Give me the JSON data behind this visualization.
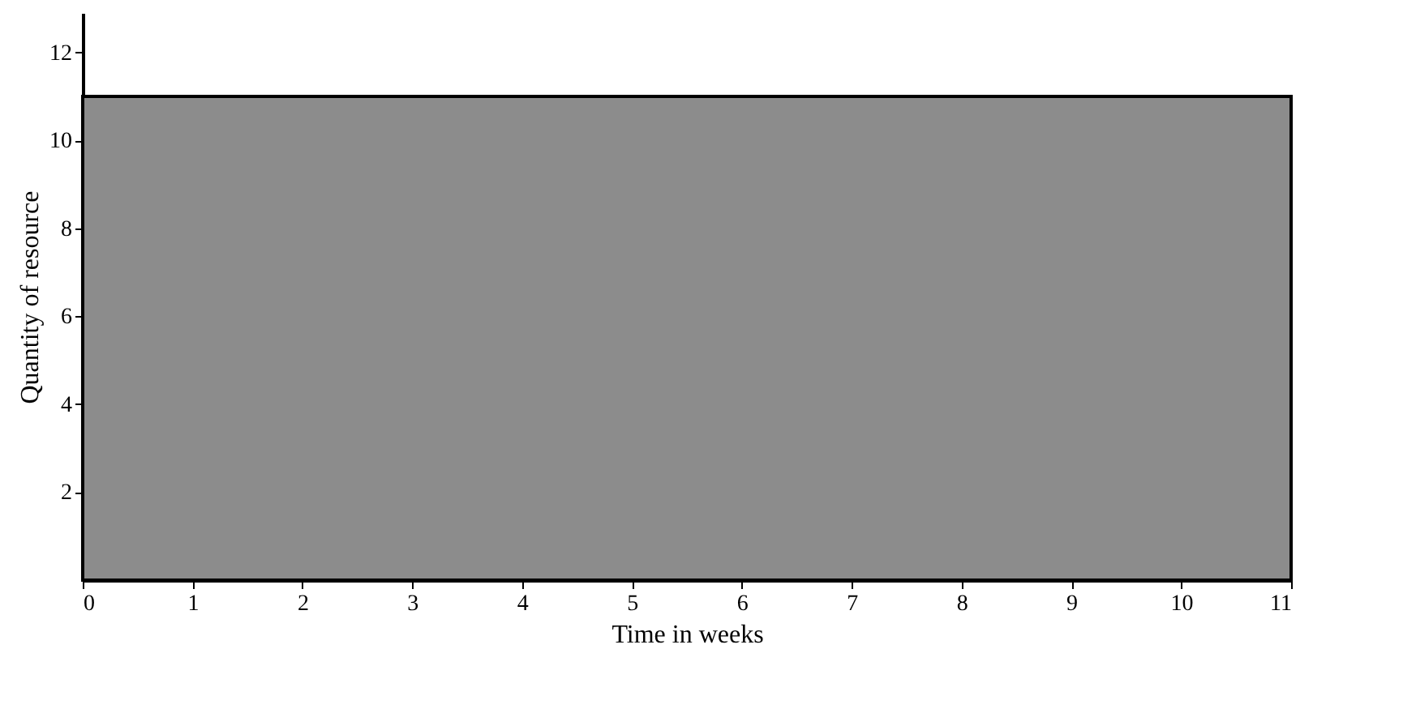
{
  "chart_data": {
    "type": "histogram",
    "xlabel": "Time in weeks",
    "ylabel": "Quantity of resource",
    "bins": [
      0,
      11
    ],
    "values": [
      11
    ],
    "color": "#8c8c8c",
    "xlim": [
      0,
      11
    ],
    "xticks": [
      0,
      1,
      2,
      3,
      4,
      5,
      6,
      7,
      8,
      9,
      10,
      11
    ],
    "ylim": [
      0,
      12.9
    ],
    "yticks": [
      2,
      4,
      6,
      8,
      10,
      12
    ],
    "grid": false
  }
}
